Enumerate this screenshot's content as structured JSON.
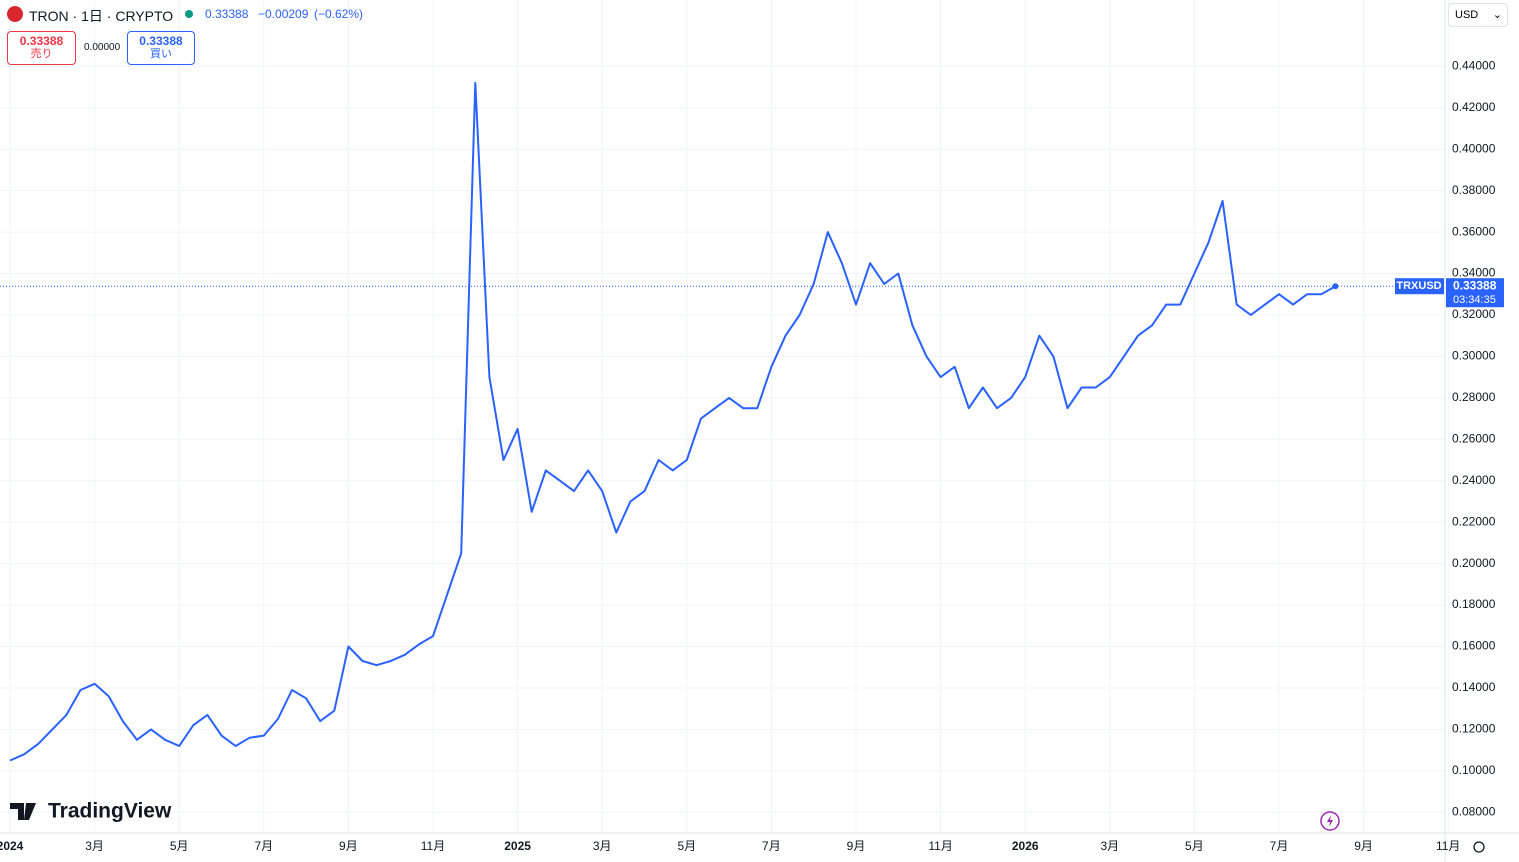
{
  "header": {
    "symbol": "TRON · 1日 · CRYPTO",
    "last": "0.33388",
    "change": "−0.00209",
    "change_pct": "(−0.62%)",
    "sell_price": "0.33388",
    "sell_label": "売り",
    "spread": "0.00000",
    "buy_price": "0.33388",
    "buy_label": "買い",
    "currency": "USD",
    "logo": "TradingView"
  },
  "chart_data": {
    "type": "line",
    "categories": [
      "2024",
      null,
      null,
      null,
      null,
      null,
      "3月",
      null,
      null,
      null,
      null,
      null,
      "5月",
      null,
      null,
      null,
      null,
      null,
      "7月",
      null,
      null,
      null,
      null,
      null,
      "9月",
      null,
      null,
      null,
      null,
      null,
      "11月",
      null,
      null,
      null,
      null,
      null,
      "2025",
      null,
      null,
      null,
      null,
      null,
      "3月",
      null,
      null,
      null,
      null,
      null,
      "5月",
      null,
      null,
      null,
      null,
      null,
      "7月",
      null,
      null,
      null,
      null,
      null,
      "9月",
      null,
      null,
      null,
      null,
      null,
      "11月",
      null,
      null,
      null,
      null,
      null,
      "2026",
      null,
      null,
      null,
      null,
      null,
      "3月",
      null,
      null,
      null,
      null,
      null,
      "5月",
      null,
      null,
      null,
      null,
      null,
      "7月",
      null,
      null,
      null,
      null,
      null,
      "9月",
      null,
      null,
      null,
      null,
      null,
      "11月"
    ],
    "series": [
      {
        "name": "TRXUSD",
        "color": "#2962ff",
        "values": [
          0.105,
          0.108,
          0.113,
          0.12,
          0.127,
          0.139,
          0.142,
          0.136,
          0.124,
          0.115,
          0.12,
          0.115,
          0.112,
          0.122,
          0.127,
          0.117,
          0.112,
          0.116,
          0.117,
          0.125,
          0.139,
          0.135,
          0.124,
          0.129,
          0.16,
          0.153,
          0.151,
          0.153,
          0.156,
          0.161,
          0.165,
          0.185,
          0.205,
          0.432,
          0.29,
          0.25,
          0.265,
          0.225,
          0.245,
          0.24,
          0.235,
          0.245,
          0.235,
          0.215,
          0.23,
          0.235,
          0.25,
          0.245,
          0.25,
          0.27,
          0.275,
          0.28,
          0.275,
          0.275,
          0.295,
          0.31,
          0.32,
          0.335,
          0.36,
          0.345,
          0.325,
          0.345,
          0.335,
          0.34,
          0.315,
          0.3,
          0.29,
          0.295,
          0.275,
          0.285,
          0.275,
          0.28,
          0.29,
          0.31,
          0.3,
          0.275,
          0.285,
          0.285,
          0.29,
          0.3,
          0.31,
          0.315,
          0.325,
          0.325,
          0.34,
          0.355,
          0.375,
          0.325,
          0.32,
          0.325,
          0.33,
          0.325,
          0.33,
          0.33,
          0.33388,
          null,
          null,
          null,
          null,
          null,
          null,
          null,
          null
        ]
      }
    ],
    "last_price": 0.33388,
    "last_price_label": "0.33388",
    "countdown": "03:34:35",
    "ylim": [
      0.07,
      0.472
    ],
    "yticks": [
      {
        "value": 0.08,
        "label": "0.08000"
      },
      {
        "value": 0.1,
        "label": "0.10000"
      },
      {
        "value": 0.12,
        "label": "0.12000"
      },
      {
        "value": 0.14,
        "label": "0.14000"
      },
      {
        "value": 0.16,
        "label": "0.16000"
      },
      {
        "value": 0.18,
        "label": "0.18000"
      },
      {
        "value": 0.2,
        "label": "0.20000"
      },
      {
        "value": 0.22,
        "label": "0.22000"
      },
      {
        "value": 0.24,
        "label": "0.24000"
      },
      {
        "value": 0.26,
        "label": "0.26000"
      },
      {
        "value": 0.28,
        "label": "0.28000"
      },
      {
        "value": 0.3,
        "label": "0.30000"
      },
      {
        "value": 0.32,
        "label": "0.32000"
      },
      {
        "value": 0.34,
        "label": "0.34000"
      },
      {
        "value": 0.36,
        "label": "0.36000"
      },
      {
        "value": 0.38,
        "label": "0.38000"
      },
      {
        "value": 0.4,
        "label": "0.40000"
      },
      {
        "value": 0.42,
        "label": "0.42000"
      },
      {
        "value": 0.44,
        "label": "0.44000"
      }
    ],
    "grid": true
  }
}
